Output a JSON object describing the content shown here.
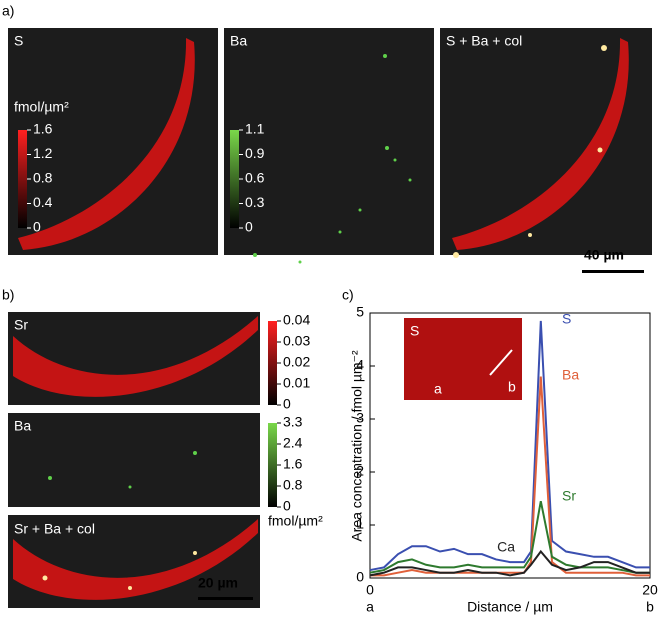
{
  "figure": {
    "panel_labels": [
      "a)",
      "b)",
      "c)"
    ],
    "a": {
      "images": [
        "S",
        "Ba",
        "S + Ba + col"
      ],
      "unit": "fmol/µm²",
      "colorbars": [
        {
          "ticks": [
            "1.6",
            "1.2",
            "0.8",
            "0.4",
            "0"
          ]
        },
        {
          "ticks": [
            "1.1",
            "0.9",
            "0.6",
            "0.3",
            "0"
          ]
        }
      ],
      "scale_bar": "40 µm"
    },
    "b": {
      "images": [
        "Sr",
        "Ba",
        "Sr + Ba + col"
      ],
      "unit": "fmol/µm²",
      "colorbars": [
        {
          "ticks": [
            "0.04",
            "0.03",
            "0.02",
            "0.01",
            "0"
          ]
        },
        {
          "ticks": [
            "3.3",
            "2.4",
            "1.6",
            "0.8",
            "0"
          ]
        }
      ],
      "scale_bar": "20 µm"
    }
  },
  "chart_data": {
    "type": "line",
    "xlabel": "Distance / µm",
    "ylabel": "Area concentration / fmol µm⁻²",
    "x": [
      0,
      1,
      2,
      3,
      4,
      5,
      6,
      7,
      8,
      9,
      10,
      11,
      11.5,
      12.2,
      13,
      14,
      15,
      16,
      17,
      18,
      19,
      20
    ],
    "series": [
      {
        "name": "S",
        "color": "#3a4fb0",
        "values": [
          0.15,
          0.2,
          0.45,
          0.6,
          0.6,
          0.5,
          0.55,
          0.45,
          0.45,
          0.35,
          0.3,
          0.3,
          0.5,
          4.85,
          0.7,
          0.5,
          0.45,
          0.4,
          0.4,
          0.3,
          0.2,
          0.2
        ]
      },
      {
        "name": "Ba",
        "color": "#e0603a",
        "values": [
          0.05,
          0.05,
          0.1,
          0.15,
          0.1,
          0.1,
          0.1,
          0.1,
          0.1,
          0.1,
          0.1,
          0.1,
          0.3,
          3.8,
          0.3,
          0.1,
          0.1,
          0.1,
          0.1,
          0.1,
          0.05,
          0.05
        ]
      },
      {
        "name": "Sr",
        "color": "#2e7a2e",
        "values": [
          0.1,
          0.15,
          0.3,
          0.35,
          0.25,
          0.2,
          0.2,
          0.25,
          0.2,
          0.2,
          0.2,
          0.2,
          0.4,
          1.45,
          0.4,
          0.25,
          0.2,
          0.2,
          0.2,
          0.15,
          0.1,
          0.1
        ]
      },
      {
        "name": "Ca",
        "color": "#222222",
        "values": [
          0.05,
          0.1,
          0.2,
          0.2,
          0.15,
          0.1,
          0.1,
          0.15,
          0.1,
          0.1,
          0.05,
          0.1,
          0.25,
          0.5,
          0.25,
          0.15,
          0.2,
          0.3,
          0.3,
          0.2,
          0.1,
          0.1
        ]
      }
    ],
    "xlim": [
      0,
      20
    ],
    "xticks": [
      0,
      20
    ],
    "x_end_labels": [
      "a",
      "b"
    ],
    "ylim": [
      0,
      5
    ],
    "yticks": [
      0,
      1,
      2,
      3,
      4,
      5
    ],
    "inset_labels": [
      "S",
      "a",
      "b"
    ]
  }
}
